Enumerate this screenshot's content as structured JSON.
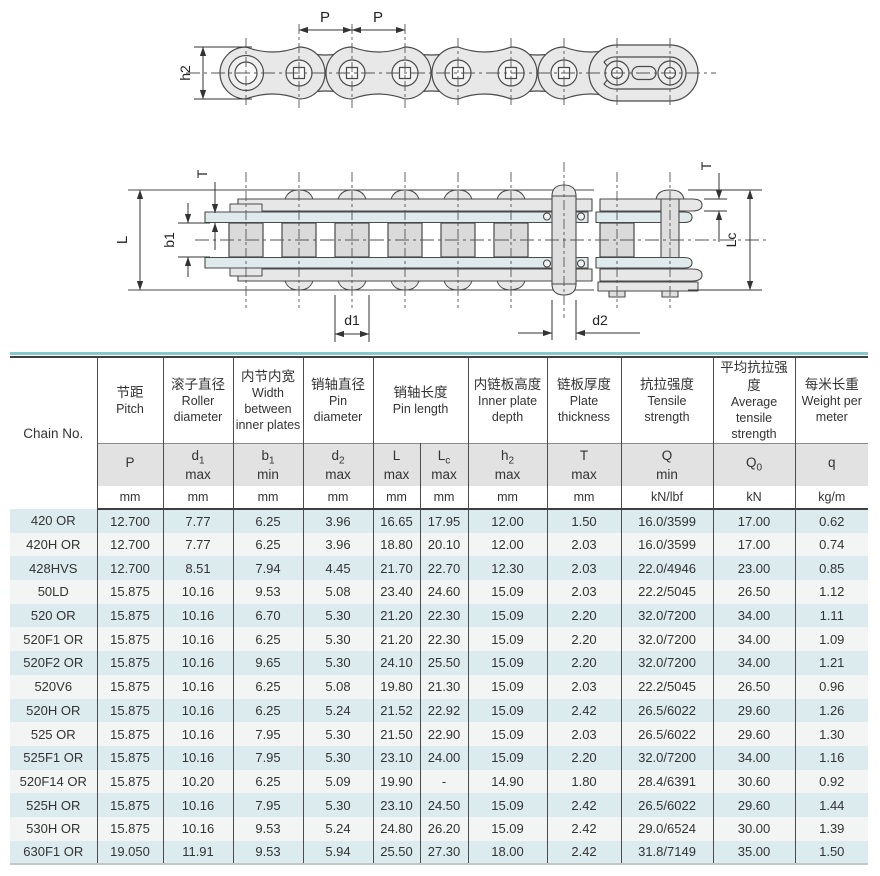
{
  "diagram": {
    "side_view": {
      "pitch_label_1": "P",
      "pitch_label_2": "P",
      "plate_height_label": "h2"
    },
    "plan_view": {
      "plate_thickness_left": "T",
      "pin_length_label": "L",
      "inner_width_label": "b1",
      "roller_dia_label": "d1",
      "pin_dia_label": "d2",
      "pin_length_c_label": "Lc",
      "plate_thickness_right": "T"
    }
  },
  "colors": {
    "accent_teal": "#85c8cd",
    "row_blue": "#dcebee",
    "row_gray": "#f3f4f4",
    "header_band_gray": "#e2e2e2",
    "border_dark": "#4c4c4c"
  },
  "table": {
    "header": {
      "chain_no": "Chain No.",
      "groups": [
        {
          "cn": "节距",
          "en": "Pitch"
        },
        {
          "cn": "滚子直径",
          "en": "Roller diameter"
        },
        {
          "cn": "内节内宽",
          "en": "Width between inner plates"
        },
        {
          "cn": "销轴直径",
          "en": "Pin diameter"
        },
        {
          "cn": "销轴长度",
          "en": "Pin length"
        },
        {
          "cn": "内链板高度",
          "en": "Inner plate depth"
        },
        {
          "cn": "链板厚度",
          "en": "Plate thickness"
        },
        {
          "cn": "抗拉强度",
          "en": "Tensile strength"
        },
        {
          "cn": "平均抗拉强度",
          "en": "Average tensile strength"
        },
        {
          "cn": "每米长重",
          "en": "Weight per meter"
        }
      ],
      "symbols": [
        {
          "base": "P",
          "sub": "",
          "qual": ""
        },
        {
          "base": "d",
          "sub": "1",
          "qual": "max"
        },
        {
          "base": "b",
          "sub": "1",
          "qual": "min"
        },
        {
          "base": "d",
          "sub": "2",
          "qual": "max"
        },
        {
          "base": "L",
          "sub": "",
          "qual": "max"
        },
        {
          "base": "L",
          "sub": "c",
          "qual": "max"
        },
        {
          "base": "h",
          "sub": "2",
          "qual": "max"
        },
        {
          "base": "T",
          "sub": "",
          "qual": "max"
        },
        {
          "base": "Q",
          "sub": "",
          "qual": "min"
        },
        {
          "base": "Q",
          "sub": "0",
          "qual": ""
        },
        {
          "base": "q",
          "sub": "",
          "qual": ""
        }
      ],
      "units": [
        "mm",
        "mm",
        "mm",
        "mm",
        "mm",
        "mm",
        "mm",
        "mm",
        "kN/lbf",
        "kN",
        "kg/m"
      ]
    },
    "rows": [
      [
        "420 OR",
        "12.700",
        "7.77",
        "6.25",
        "3.96",
        "16.65",
        "17.95",
        "12.00",
        "1.50",
        "16.0/3599",
        "17.00",
        "0.62"
      ],
      [
        "420H OR",
        "12.700",
        "7.77",
        "6.25",
        "3.96",
        "18.80",
        "20.10",
        "12.00",
        "2.03",
        "16.0/3599",
        "17.00",
        "0.74"
      ],
      [
        "428HVS",
        "12.700",
        "8.51",
        "7.94",
        "4.45",
        "21.70",
        "22.70",
        "12.30",
        "2.03",
        "22.0/4946",
        "23.00",
        "0.85"
      ],
      [
        "50LD",
        "15.875",
        "10.16",
        "9.53",
        "5.08",
        "23.40",
        "24.60",
        "15.09",
        "2.03",
        "22.2/5045",
        "26.50",
        "1.12"
      ],
      [
        "520 OR",
        "15.875",
        "10.16",
        "6.70",
        "5.30",
        "21.20",
        "22.30",
        "15.09",
        "2.20",
        "32.0/7200",
        "34.00",
        "1.11"
      ],
      [
        "520F1 OR",
        "15.875",
        "10.16",
        "6.25",
        "5.30",
        "21.20",
        "22.30",
        "15.09",
        "2.20",
        "32.0/7200",
        "34.00",
        "1.09"
      ],
      [
        "520F2 OR",
        "15.875",
        "10.16",
        "9.65",
        "5.30",
        "24.10",
        "25.50",
        "15.09",
        "2.20",
        "32.0/7200",
        "34.00",
        "1.21"
      ],
      [
        "520V6",
        "15.875",
        "10.16",
        "6.25",
        "5.08",
        "19.80",
        "21.30",
        "15.09",
        "2.03",
        "22.2/5045",
        "26.50",
        "0.96"
      ],
      [
        "520H OR",
        "15.875",
        "10.16",
        "6.25",
        "5.24",
        "21.52",
        "22.92",
        "15.09",
        "2.42",
        "26.5/6022",
        "29.60",
        "1.26"
      ],
      [
        "525 OR",
        "15.875",
        "10.16",
        "7.95",
        "5.30",
        "21.50",
        "22.90",
        "15.09",
        "2.03",
        "26.5/6022",
        "29.60",
        "1.30"
      ],
      [
        "525F1 OR",
        "15.875",
        "10.16",
        "7.95",
        "5.30",
        "23.10",
        "24.00",
        "15.09",
        "2.20",
        "32.0/7200",
        "34.00",
        "1.16"
      ],
      [
        "520F14 OR",
        "15.875",
        "10.20",
        "6.25",
        "5.09",
        "19.90",
        "-",
        "14.90",
        "1.80",
        "28.4/6391",
        "30.60",
        "0.92"
      ],
      [
        "525H OR",
        "15.875",
        "10.16",
        "7.95",
        "5.30",
        "23.10",
        "24.50",
        "15.09",
        "2.42",
        "26.5/6022",
        "29.60",
        "1.44"
      ],
      [
        "530H OR",
        "15.875",
        "10.16",
        "9.53",
        "5.24",
        "24.80",
        "26.20",
        "15.09",
        "2.42",
        "29.0/6524",
        "30.00",
        "1.39"
      ],
      [
        "630F1 OR",
        "19.050",
        "11.91",
        "9.53",
        "5.94",
        "25.50",
        "27.30",
        "18.00",
        "2.42",
        "31.8/7149",
        "35.00",
        "1.50"
      ]
    ]
  }
}
